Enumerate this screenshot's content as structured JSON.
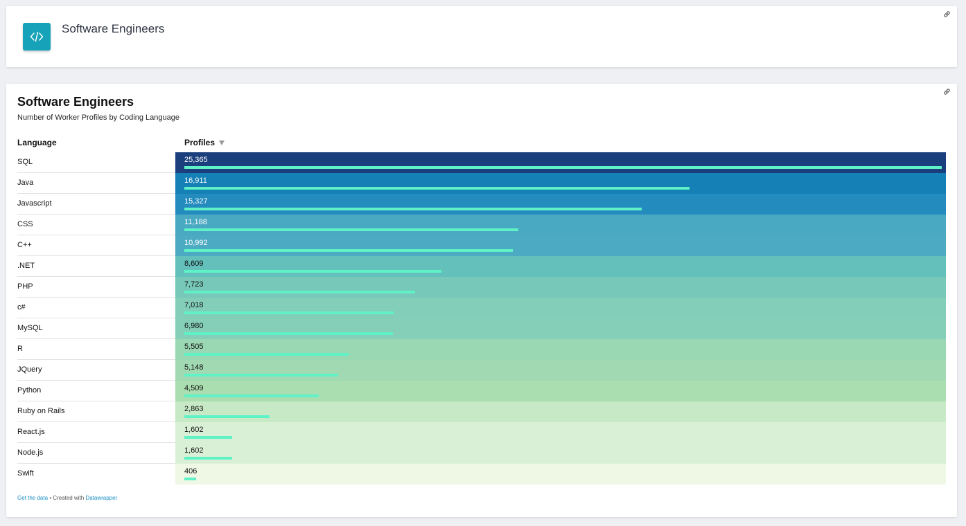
{
  "header_card": {
    "title": "Software Engineers",
    "icon": "code-icon"
  },
  "chart_card": {
    "title": "Software Engineers",
    "subtitle": "Number of Worker Profiles by Coding Language",
    "columns": {
      "language": "Language",
      "profiles": "Profiles"
    },
    "footer": {
      "get_data": "Get the data",
      "separator": " • Created with ",
      "tool": "Datawrapper"
    }
  },
  "chart_data": {
    "type": "table",
    "title": "Software Engineers",
    "subtitle": "Number of Worker Profiles by Coding Language",
    "columns": [
      "Language",
      "Profiles"
    ],
    "sort": {
      "column": "Profiles",
      "order": "descending"
    },
    "bar_color": "#5ff2c7",
    "rows": [
      {
        "language": "SQL",
        "profiles": 25365,
        "label": "25,365",
        "bg": "#1a3f7c",
        "text": "#ffffff"
      },
      {
        "language": "Java",
        "profiles": 16911,
        "label": "16,911",
        "bg": "#1480b5",
        "text": "#ffffff"
      },
      {
        "language": "Javascript",
        "profiles": 15327,
        "label": "15,327",
        "bg": "#238bbe",
        "text": "#ffffff"
      },
      {
        "language": "CSS",
        "profiles": 11188,
        "label": "11,188",
        "bg": "#4aa9c2",
        "text": "#ffffff"
      },
      {
        "language": "C++",
        "profiles": 10992,
        "label": "10,992",
        "bg": "#4cabc2",
        "text": "#ffffff"
      },
      {
        "language": ".NET",
        "profiles": 8609,
        "label": "8,609",
        "bg": "#64c0bb",
        "text": "#111111"
      },
      {
        "language": "PHP",
        "profiles": 7723,
        "label": "7,723",
        "bg": "#77c8b8",
        "text": "#111111"
      },
      {
        "language": "c#",
        "profiles": 7018,
        "label": "7,018",
        "bg": "#83ceb8",
        "text": "#111111"
      },
      {
        "language": "MySQL",
        "profiles": 6980,
        "label": "6,980",
        "bg": "#85cfb8",
        "text": "#111111"
      },
      {
        "language": "R",
        "profiles": 5505,
        "label": "5,505",
        "bg": "#9ad8b4",
        "text": "#111111"
      },
      {
        "language": "JQuery",
        "profiles": 5148,
        "label": "5,148",
        "bg": "#a1dab2",
        "text": "#111111"
      },
      {
        "language": "Python",
        "profiles": 4509,
        "label": "4,509",
        "bg": "#aadeb0",
        "text": "#111111"
      },
      {
        "language": "Ruby on Rails",
        "profiles": 2863,
        "label": "2,863",
        "bg": "#c8e9c5",
        "text": "#111111"
      },
      {
        "language": "React.js",
        "profiles": 1602,
        "label": "1,602",
        "bg": "#daf0d6",
        "text": "#111111"
      },
      {
        "language": "Node.js",
        "profiles": 1602,
        "label": "1,602",
        "bg": "#daf0d6",
        "text": "#111111"
      },
      {
        "language": "Swift",
        "profiles": 406,
        "label": "406",
        "bg": "#eef8e5",
        "text": "#111111"
      }
    ]
  }
}
